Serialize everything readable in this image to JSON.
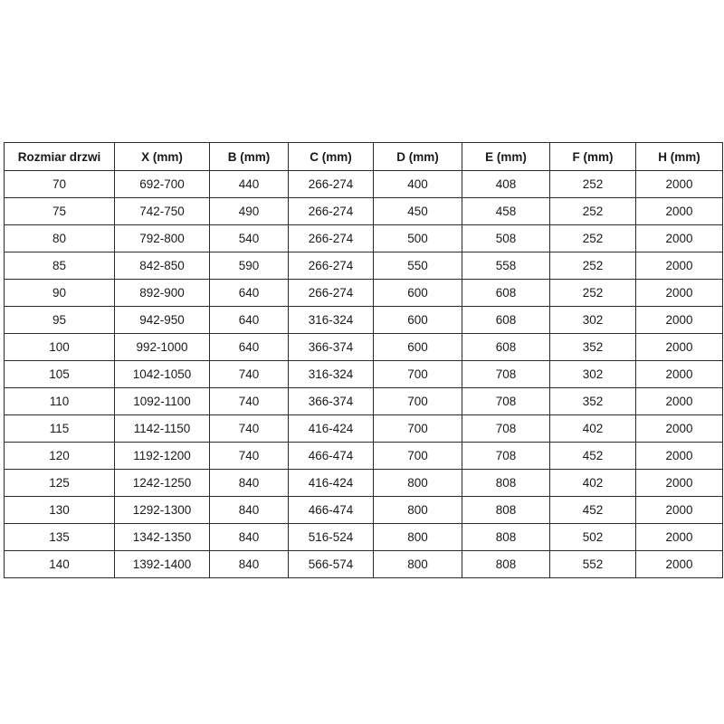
{
  "table": {
    "name": "door-size-specifications",
    "headers": [
      "Rozmiar drzwi",
      "X (mm)",
      "B (mm)",
      "C (mm)",
      "D (mm)",
      "E (mm)",
      "F (mm)",
      "H (mm)"
    ],
    "rows": [
      [
        "70",
        "692-700",
        "440",
        "266-274",
        "400",
        "408",
        "252",
        "2000"
      ],
      [
        "75",
        "742-750",
        "490",
        "266-274",
        "450",
        "458",
        "252",
        "2000"
      ],
      [
        "80",
        "792-800",
        "540",
        "266-274",
        "500",
        "508",
        "252",
        "2000"
      ],
      [
        "85",
        "842-850",
        "590",
        "266-274",
        "550",
        "558",
        "252",
        "2000"
      ],
      [
        "90",
        "892-900",
        "640",
        "266-274",
        "600",
        "608",
        "252",
        "2000"
      ],
      [
        "95",
        "942-950",
        "640",
        "316-324",
        "600",
        "608",
        "302",
        "2000"
      ],
      [
        "100",
        "992-1000",
        "640",
        "366-374",
        "600",
        "608",
        "352",
        "2000"
      ],
      [
        "105",
        "1042-1050",
        "740",
        "316-324",
        "700",
        "708",
        "302",
        "2000"
      ],
      [
        "110",
        "1092-1100",
        "740",
        "366-374",
        "700",
        "708",
        "352",
        "2000"
      ],
      [
        "115",
        "1142-1150",
        "740",
        "416-424",
        "700",
        "708",
        "402",
        "2000"
      ],
      [
        "120",
        "1192-1200",
        "740",
        "466-474",
        "700",
        "708",
        "452",
        "2000"
      ],
      [
        "125",
        "1242-1250",
        "840",
        "416-424",
        "800",
        "808",
        "402",
        "2000"
      ],
      [
        "130",
        "1292-1300",
        "840",
        "466-474",
        "800",
        "808",
        "452",
        "2000"
      ],
      [
        "135",
        "1342-1350",
        "840",
        "516-524",
        "800",
        "808",
        "502",
        "2000"
      ],
      [
        "140",
        "1392-1400",
        "840",
        "566-574",
        "800",
        "808",
        "552",
        "2000"
      ]
    ],
    "colors": {
      "border": "#2b2b2b",
      "text": "#1a1a1a",
      "background": "#ffffff"
    }
  }
}
